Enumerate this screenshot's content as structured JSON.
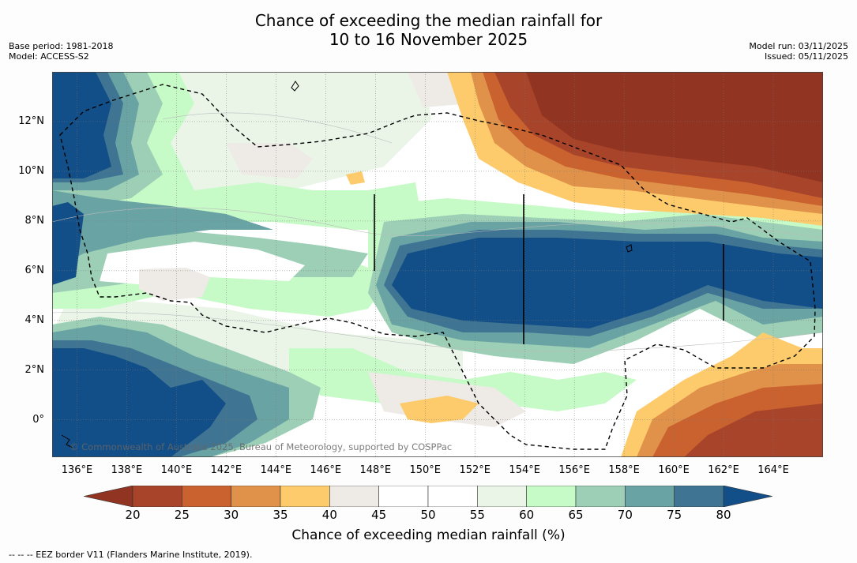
{
  "title": {
    "line1": "Chance of exceeding the median rainfall for",
    "line2": "10 to 16 November 2025"
  },
  "meta_left": {
    "base_period": "Base period: 1981-2018",
    "model": "Model: ACCESS-S2"
  },
  "meta_right": {
    "model_run": "Model run: 03/11/2025",
    "issued": "Issued: 05/11/2025"
  },
  "map": {
    "copyright": "© Commonwealth of Australia 2025, Bureau of Meteorology, supported by COSPPac",
    "lon_range": [
      135,
      166
    ],
    "lat_range": [
      -1.5,
      14
    ],
    "lat_ticks": [
      {
        "value": 12,
        "label": "12°N"
      },
      {
        "value": 10,
        "label": "10°N"
      },
      {
        "value": 8,
        "label": "8°N"
      },
      {
        "value": 6,
        "label": "6°N"
      },
      {
        "value": 4,
        "label": "4°N"
      },
      {
        "value": 2,
        "label": "2°N"
      },
      {
        "value": 0,
        "label": "0°"
      }
    ],
    "lon_ticks": [
      {
        "value": 136,
        "label": "136°E"
      },
      {
        "value": 138,
        "label": "138°E"
      },
      {
        "value": 140,
        "label": "140°E"
      },
      {
        "value": 142,
        "label": "142°E"
      },
      {
        "value": 144,
        "label": "144°E"
      },
      {
        "value": 146,
        "label": "146°E"
      },
      {
        "value": 148,
        "label": "148°E"
      },
      {
        "value": 150,
        "label": "150°E"
      },
      {
        "value": 152,
        "label": "152°E"
      },
      {
        "value": 154,
        "label": "154°E"
      },
      {
        "value": 156,
        "label": "156°E"
      },
      {
        "value": 158,
        "label": "158°E"
      },
      {
        "value": 160,
        "label": "160°E"
      },
      {
        "value": 162,
        "label": "162°E"
      },
      {
        "value": 164,
        "label": "164°E"
      }
    ]
  },
  "colorbar": {
    "label": "Chance of exceeding median rainfall (%)",
    "under_color": "#913421",
    "over_color": "#124e87",
    "bins": [
      {
        "from": 20,
        "to": 25,
        "color": "#a8442a"
      },
      {
        "from": 25,
        "to": 30,
        "color": "#c9622f"
      },
      {
        "from": 30,
        "to": 35,
        "color": "#e1924a"
      },
      {
        "from": 35,
        "to": 40,
        "color": "#fdcb6b"
      },
      {
        "from": 40,
        "to": 45,
        "color": "#eeeae6"
      },
      {
        "from": 45,
        "to": 50,
        "color": "#ffffff"
      },
      {
        "from": 50,
        "to": 55,
        "color": "#ffffff"
      },
      {
        "from": 55,
        "to": 60,
        "color": "#eaf5e8"
      },
      {
        "from": 60,
        "to": 65,
        "color": "#c6fac6"
      },
      {
        "from": 65,
        "to": 70,
        "color": "#9ccfb6"
      },
      {
        "from": 70,
        "to": 75,
        "color": "#6aa3a3"
      },
      {
        "from": 75,
        "to": 80,
        "color": "#3f7593"
      }
    ],
    "ticks": [
      "20",
      "25",
      "30",
      "35",
      "40",
      "45",
      "50",
      "55",
      "60",
      "65",
      "70",
      "75",
      "80"
    ]
  },
  "footnote": "--  --  -- EEZ border V11 (Flanders Marine Institute, 2019)."
}
